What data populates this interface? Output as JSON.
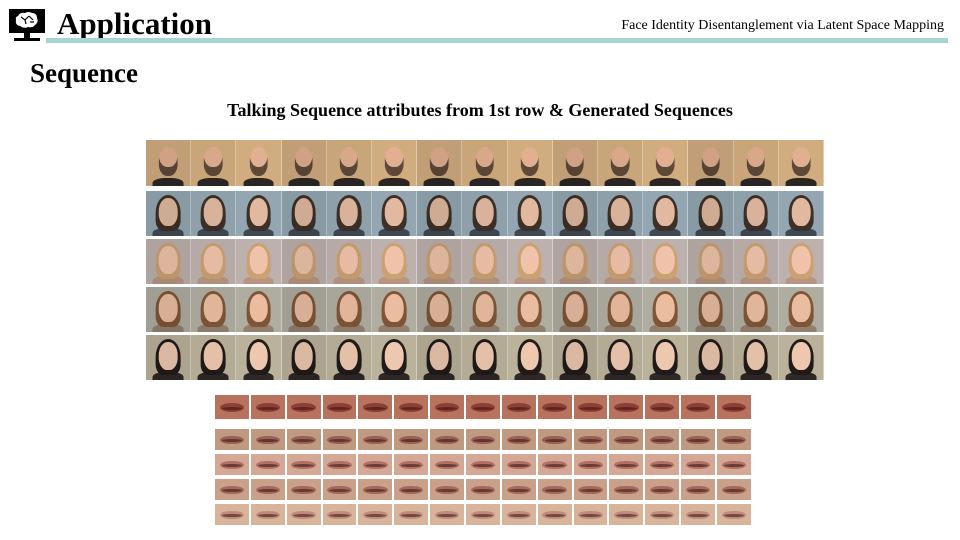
{
  "header": {
    "title": "Application",
    "subtitle": "Face Identity Disentanglement via Latent Space Mapping",
    "rule_color": "#a9d4d6"
  },
  "section": {
    "title": "Sequence"
  },
  "caption": "Talking Sequence attributes from 1st row & Generated Sequences",
  "face_grid": {
    "frames_per_row": 15,
    "rows": [
      {
        "subject": "bald-bearded-man",
        "bg": "#c9a57a",
        "skin": "#d9a88a",
        "hair": "#5a4636",
        "clothing": "#2a2522"
      },
      {
        "subject": "man-with-glasses",
        "bg": "#8ea0aa",
        "skin": "#d8b29a",
        "hair": "#3a2e26",
        "clothing": "#3d4650"
      },
      {
        "subject": "blonde-woman",
        "bg": "#b5aaa6",
        "skin": "#e6bba3",
        "hair": "#c39a6e",
        "clothing": "#b08f7c"
      },
      {
        "subject": "brunette-woman",
        "bg": "#a8a59a",
        "skin": "#e1b59a",
        "hair": "#7a5234",
        "clothing": "#8c7a6a"
      },
      {
        "subject": "dark-haired-woman",
        "bg": "#b4ab95",
        "skin": "#e4c0a8",
        "hair": "#1f1a18",
        "clothing": "#2b2624"
      }
    ]
  },
  "lip_grid": {
    "frames_per_row": 15,
    "rows": [
      {
        "bg": "#b8735e",
        "lip": "#8e3e35"
      },
      {
        "bg": "#c09a80",
        "lip": "#9a6055"
      },
      {
        "bg": "#d4a895",
        "lip": "#b07066"
      },
      {
        "bg": "#c9a08a",
        "lip": "#a5685a"
      },
      {
        "bg": "#d8b49b",
        "lip": "#c08a7d"
      }
    ]
  }
}
